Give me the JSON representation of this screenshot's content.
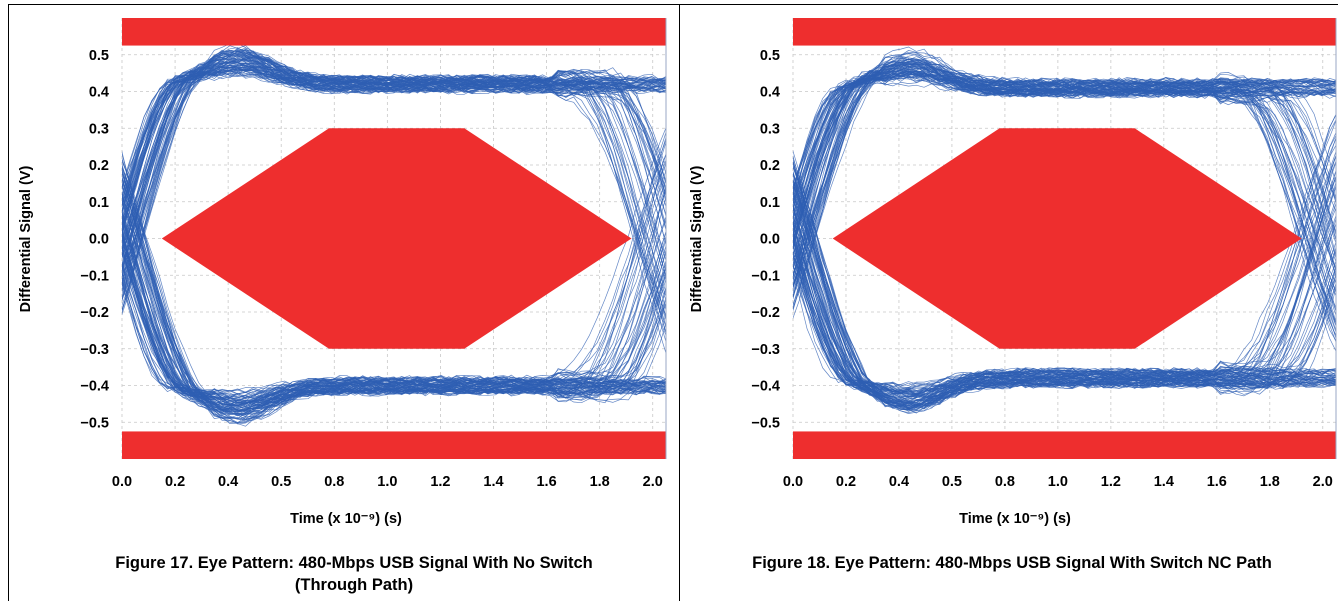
{
  "chart_data": [
    {
      "type": "line",
      "subtype": "eye-diagram",
      "caption": "Figure 17. Eye Pattern: 480-Mbps USB Signal With No Switch (Through Path)",
      "xlabel": "Time (x 10⁻⁹) (s)",
      "ylabel": "Differential Signal (V)",
      "xlim": [
        0.0,
        2.05
      ],
      "ylim": [
        -0.6,
        0.6
      ],
      "x_ticks": [
        "0.0",
        "0.2",
        "0.4",
        "0.5",
        "0.8",
        "1.0",
        "1.2",
        "1.4",
        "1.6",
        "1.8",
        "2.0"
      ],
      "y_ticks": [
        "0.5",
        "0.4",
        "0.3",
        "0.2",
        "0.1",
        "0.0",
        "−0.1",
        "−0.2",
        "−0.3",
        "−0.4",
        "−0.5"
      ],
      "grid": true,
      "mask": {
        "hexagon": [
          [
            0.15,
            0.0
          ],
          [
            0.78,
            0.3
          ],
          [
            1.29,
            0.3
          ],
          [
            1.92,
            0.0
          ],
          [
            1.29,
            -0.3
          ],
          [
            0.78,
            -0.3
          ]
        ],
        "top_band_min_y": 0.525,
        "bottom_band_max_y": -0.525
      },
      "eye": {
        "high_level": 0.42,
        "low_level": -0.4,
        "crossing_left_x": 0.02,
        "crossing_right_x": 2.03,
        "overshoot_peak": 0.49,
        "undershoot_peak": -0.47
      },
      "colors": {
        "mask": "#ee2e2e",
        "trace": "#2f5fb3",
        "grid": "#c8c8c8"
      }
    },
    {
      "type": "line",
      "subtype": "eye-diagram",
      "caption": "Figure 18. Eye Pattern: 480-Mbps USB Signal With Switch NC Path",
      "xlabel": "Time (x 10⁻⁹) (s)",
      "ylabel": "Differential Signal (V)",
      "xlim": [
        0.0,
        2.05
      ],
      "ylim": [
        -0.6,
        0.6
      ],
      "x_ticks": [
        "0.0",
        "0.2",
        "0.4",
        "0.5",
        "0.8",
        "1.0",
        "1.2",
        "1.4",
        "1.6",
        "1.8",
        "2.0"
      ],
      "y_ticks": [
        "0.5",
        "0.4",
        "0.3",
        "0.2",
        "0.1",
        "0.0",
        "−0.1",
        "−0.2",
        "−0.3",
        "−0.4",
        "−0.5"
      ],
      "grid": true,
      "mask": {
        "hexagon": [
          [
            0.15,
            0.0
          ],
          [
            0.78,
            0.3
          ],
          [
            1.29,
            0.3
          ],
          [
            1.92,
            0.0
          ],
          [
            1.29,
            -0.3
          ],
          [
            0.78,
            -0.3
          ]
        ],
        "top_band_min_y": 0.525,
        "bottom_band_max_y": -0.525
      },
      "eye": {
        "high_level": 0.41,
        "low_level": -0.38,
        "crossing_left_x": 0.02,
        "crossing_right_x": 2.0,
        "overshoot_peak": 0.48,
        "undershoot_peak": -0.46
      },
      "colors": {
        "mask": "#ee2e2e",
        "trace": "#2f5fb3",
        "grid": "#c8c8c8"
      }
    }
  ]
}
